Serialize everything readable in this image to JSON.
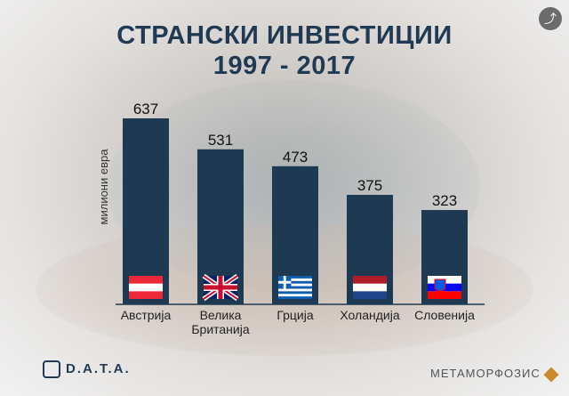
{
  "title_line1": "СТРАНСКИ ИНВЕСТИЦИИ",
  "title_line2": "1997 - 2017",
  "share_icon": "share-icon",
  "logos": {
    "left": "D.A.T.A.",
    "right": "МЕТАМОРФОЗИС"
  },
  "chart_data": {
    "type": "bar",
    "title": "СТРАНСКИ ИНВЕСТИЦИИ 1997 - 2017",
    "ylabel": "милиони евра",
    "xlabel": "",
    "ylim": [
      0,
      637
    ],
    "categories": [
      [
        "Австрија"
      ],
      [
        "Велика",
        "Британија"
      ],
      [
        "Грција"
      ],
      [
        "Холандија"
      ],
      [
        "Словенија"
      ]
    ],
    "values": [
      637,
      531,
      473,
      375,
      323
    ],
    "flags": [
      "austria-flag",
      "uk-flag",
      "greece-flag",
      "netherlands-flag",
      "slovenia-flag"
    ],
    "bar_color": "#1e3a52",
    "grid": false
  }
}
